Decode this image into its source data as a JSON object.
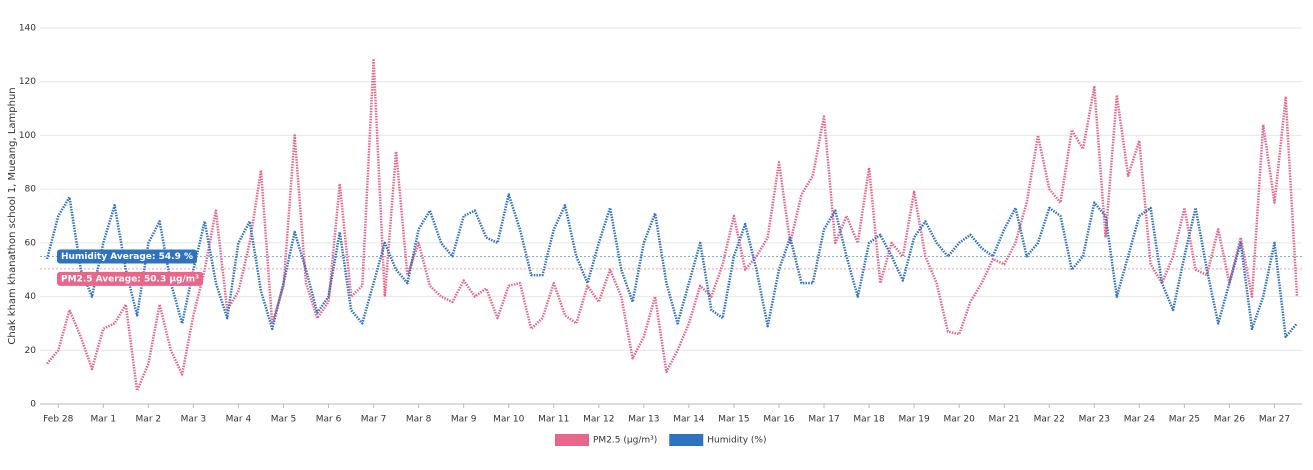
{
  "chart_data": {
    "type": "line",
    "y_label": "Chak kham khanathon school 1, Mueang, Lamphun",
    "categories": [
      null,
      "Feb 28",
      null,
      null,
      null,
      "Mar 1",
      null,
      null,
      null,
      "Mar 2",
      null,
      null,
      null,
      "Mar 3",
      null,
      null,
      null,
      "Mar 4",
      null,
      null,
      null,
      "Mar 5",
      null,
      null,
      null,
      "Mar 6",
      null,
      null,
      null,
      "Mar 7",
      null,
      null,
      null,
      "Mar 8",
      null,
      null,
      null,
      "Mar 9",
      null,
      null,
      null,
      "Mar 10",
      null,
      null,
      null,
      "Mar 11",
      null,
      null,
      null,
      "Mar 12",
      null,
      null,
      null,
      "Mar 13",
      null,
      null,
      null,
      "Mar 14",
      null,
      null,
      null,
      "Mar 15",
      null,
      null,
      null,
      "Mar 16",
      null,
      null,
      null,
      "Mar 17",
      null,
      null,
      null,
      "Mar 18",
      null,
      null,
      null,
      "Mar 19",
      null,
      null,
      null,
      "Mar 20",
      null,
      null,
      null,
      "Mar 21",
      null,
      null,
      null,
      "Mar 22",
      null,
      null,
      null,
      "Mar 23",
      null,
      null,
      null,
      "Mar 24",
      null,
      null,
      null,
      "Mar 25",
      null,
      null,
      null,
      "Mar 26",
      null,
      null,
      null,
      "Mar 27",
      null,
      null
    ],
    "series": [
      {
        "name": "PM2.5 (µg/m³)",
        "color": "#e8668a",
        "values": [
          15,
          20,
          35,
          25,
          13,
          28,
          30,
          37,
          5,
          15,
          37,
          20,
          11,
          33,
          50,
          72,
          35,
          42,
          60,
          87,
          30,
          44,
          100,
          45,
          32,
          38,
          82,
          40,
          44,
          128,
          40,
          94,
          48,
          60,
          44,
          40,
          38,
          46,
          40,
          43,
          32,
          44,
          45,
          28,
          32,
          45,
          33,
          30,
          44,
          38,
          50,
          40,
          17,
          25,
          40,
          12,
          20,
          30,
          44,
          40,
          52,
          70,
          50,
          55,
          62,
          90,
          60,
          78,
          85,
          107,
          60,
          70,
          60,
          88,
          45,
          60,
          55,
          79,
          55,
          45,
          27,
          26,
          38,
          45,
          54,
          52,
          60,
          75,
          100,
          80,
          75,
          102,
          95,
          118,
          62,
          115,
          85,
          98,
          52,
          45,
          55,
          73,
          50,
          48,
          65,
          45,
          62,
          40,
          104,
          75,
          114,
          40
        ]
      },
      {
        "name": "Humidity (%)",
        "color": "#2f72c0",
        "values": [
          54,
          70,
          77,
          50,
          40,
          60,
          74,
          50,
          33,
          60,
          68,
          45,
          30,
          50,
          68,
          45,
          32,
          60,
          68,
          42,
          28,
          45,
          64,
          50,
          34,
          40,
          64,
          35,
          30,
          45,
          60,
          50,
          45,
          65,
          72,
          60,
          55,
          70,
          72,
          62,
          60,
          78,
          65,
          48,
          48,
          65,
          74,
          55,
          45,
          60,
          73,
          50,
          38,
          60,
          71,
          45,
          30,
          45,
          60,
          35,
          32,
          55,
          67,
          50,
          29,
          50,
          62,
          45,
          45,
          65,
          72,
          55,
          40,
          60,
          63,
          55,
          46,
          62,
          68,
          60,
          55,
          60,
          63,
          58,
          55,
          65,
          73,
          55,
          60,
          73,
          70,
          50,
          55,
          75,
          70,
          40,
          55,
          70,
          73,
          45,
          35,
          55,
          73,
          50,
          30,
          45,
          60,
          28,
          40,
          60,
          25,
          30
        ]
      }
    ],
    "annotations": [
      {
        "label": "Humidity Average: 54.9 %",
        "value": 54.9,
        "color": "#2f72c0"
      },
      {
        "label": "PM2.5 Average: 50.3 µg/m³",
        "value": 50.3,
        "color": "#e8668a"
      }
    ],
    "ylim": [
      0,
      140
    ],
    "yticks": [
      0,
      20,
      40,
      60,
      80,
      100,
      120,
      140
    ],
    "grid": true,
    "legend": "bottom"
  }
}
